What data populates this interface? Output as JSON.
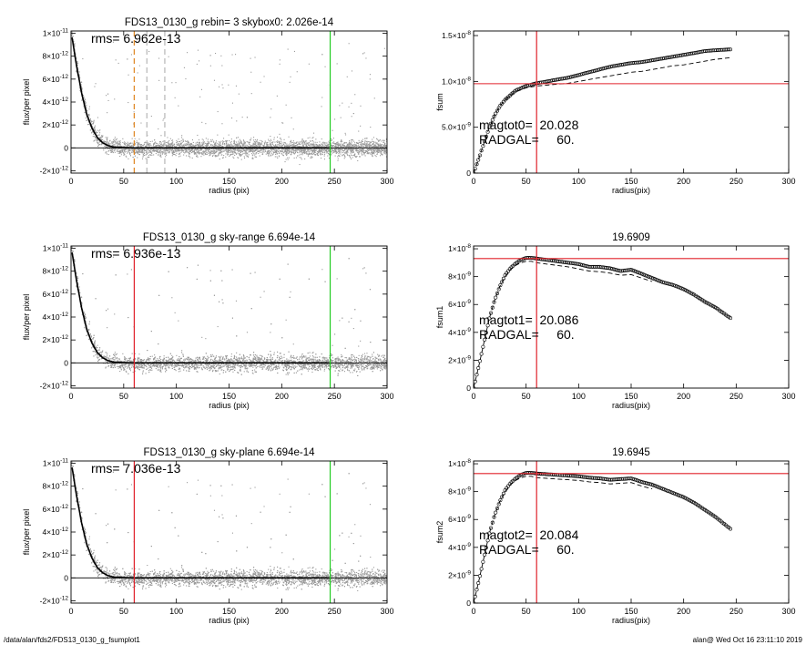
{
  "page": {
    "footer_left": "/data/alan/fds2/FDS13_0130_g_fsumplot1",
    "footer_right": "alan@  Wed Oct 16 23:11:10 2019"
  },
  "colors": {
    "background": "#ffffff",
    "axes": "#000000",
    "scatter": "#9a9a9a",
    "profile": "#000000",
    "red_line": "#e0222a",
    "green_line": "#22cc22",
    "orange_dashed": "#e08a2a",
    "gray_dashed": "#bbbbbb"
  },
  "chart_data": [
    {
      "id": "p1",
      "type": "scatter",
      "title": "FDS13_0130_g rebin= 3    skybox0:  2.026e-14",
      "xlabel": "radius (pix)",
      "ylabel": "flux/per pixel",
      "xlim": [
        0,
        300
      ],
      "ylim": [
        -2.2e-12,
        1.02e-11
      ],
      "xticks": [
        0,
        50,
        100,
        150,
        200,
        250,
        300
      ],
      "xtick_labels": [
        "0",
        "50",
        "100",
        "150",
        "200",
        "250",
        "300"
      ],
      "yticks": [
        -2e-12,
        0,
        2e-12,
        4e-12,
        6e-12,
        8e-12,
        1e-11
      ],
      "ytick_labels": [
        "-2×10^-12",
        "0",
        "2×10^-12",
        "4×10^-12",
        "6×10^-12",
        "8×10^-12",
        "1×10^-11"
      ],
      "annotation": "rms= 6.962e-13",
      "profile": {
        "x": [
          0,
          5,
          10,
          15,
          20,
          25,
          30,
          35,
          40,
          50,
          60,
          80,
          100,
          150,
          200,
          245
        ],
        "y": [
          1.02e-11,
          7.3e-12,
          4.8e-12,
          2.9e-12,
          1.7e-12,
          9e-13,
          4.5e-13,
          2e-13,
          8e-14,
          2e-14,
          0.0,
          0.0,
          0.0,
          0.0,
          0.0,
          0.0
        ]
      },
      "vlines": [
        {
          "x": 246,
          "color": "green",
          "style": "solid"
        },
        {
          "x": 60,
          "color": "orange",
          "style": "dashed"
        },
        {
          "x": 72,
          "color": "gray",
          "style": "dashed"
        },
        {
          "x": 89,
          "color": "gray",
          "style": "dashed"
        }
      ],
      "hlines": []
    },
    {
      "id": "p2",
      "type": "scatter",
      "title": "",
      "xlabel": "radius(pix)",
      "ylabel": "fsum",
      "xlim": [
        0,
        300
      ],
      "ylim": [
        0,
        1.55e-08
      ],
      "xticks": [
        0,
        50,
        100,
        150,
        200,
        250,
        300
      ],
      "xtick_labels": [
        "0",
        "50",
        "100",
        "150",
        "200",
        "250",
        "300"
      ],
      "yticks": [
        0,
        5e-09,
        1e-08,
        1.5e-08
      ],
      "ytick_labels": [
        "0",
        "5.0×10^-9",
        "1.0×10^-8",
        "1.5×10^-8"
      ],
      "annotations": [
        "magtot0=  20.028",
        "RADGAL=     60."
      ],
      "series": [
        {
          "style": "circles",
          "x": [
            0,
            5,
            10,
            15,
            20,
            25,
            30,
            40,
            50,
            60,
            70,
            80,
            90,
            100,
            110,
            120,
            130,
            140,
            150,
            160,
            170,
            180,
            190,
            200,
            210,
            220,
            230,
            245
          ],
          "y": [
            0,
            1.6e-09,
            3.3e-09,
            5e-09,
            6.3e-09,
            7.3e-09,
            8e-09,
            9e-09,
            9.5e-09,
            9.8e-09,
            1e-08,
            1.02e-08,
            1.04e-08,
            1.07e-08,
            1.1e-08,
            1.13e-08,
            1.16e-08,
            1.18e-08,
            1.2e-08,
            1.21e-08,
            1.23e-08,
            1.25e-08,
            1.27e-08,
            1.29e-08,
            1.31e-08,
            1.33e-08,
            1.34e-08,
            1.35e-08
          ]
        },
        {
          "style": "dashed",
          "x": [
            0,
            5,
            10,
            15,
            20,
            25,
            30,
            40,
            50,
            60,
            70,
            80,
            90,
            100,
            110,
            120,
            130,
            140,
            150,
            160,
            170,
            180,
            190,
            200,
            210,
            220,
            230,
            245
          ],
          "y": [
            0,
            1.6e-09,
            3.3e-09,
            5e-09,
            6.3e-09,
            7.3e-09,
            8e-09,
            8.9e-09,
            9.3e-09,
            9.5e-09,
            9.6e-09,
            9.7e-09,
            9.8e-09,
            1e-08,
            1.02e-08,
            1.04e-08,
            1.06e-08,
            1.08e-08,
            1.1e-08,
            1.11e-08,
            1.13e-08,
            1.15e-08,
            1.17e-08,
            1.18e-08,
            1.2e-08,
            1.22e-08,
            1.24e-08,
            1.26e-08
          ]
        }
      ],
      "vlines": [
        {
          "x": 60,
          "color": "red",
          "style": "solid"
        }
      ],
      "hlines": [
        {
          "y": 9.75e-09,
          "color": "red"
        }
      ]
    },
    {
      "id": "p3",
      "type": "scatter",
      "title": "FDS13_0130_g sky-range  6.694e-14",
      "xlabel": "radius (pix)",
      "ylabel": "flux/per pixel",
      "xlim": [
        0,
        300
      ],
      "ylim": [
        -2.2e-12,
        1.02e-11
      ],
      "xticks": [
        0,
        50,
        100,
        150,
        200,
        250,
        300
      ],
      "xtick_labels": [
        "0",
        "50",
        "100",
        "150",
        "200",
        "250",
        "300"
      ],
      "yticks": [
        -2e-12,
        0,
        2e-12,
        4e-12,
        6e-12,
        8e-12,
        1e-11
      ],
      "ytick_labels": [
        "-2×10^-12",
        "0",
        "2×10^-12",
        "4×10^-12",
        "6×10^-12",
        "8×10^-12",
        "1×10^-11"
      ],
      "annotation": "rms= 6.936e-13",
      "profile": {
        "x": [
          0,
          5,
          10,
          15,
          20,
          25,
          30,
          35,
          40,
          50,
          60,
          80,
          100,
          150,
          200,
          245
        ],
        "y": [
          1.02e-11,
          7.3e-12,
          4.8e-12,
          2.9e-12,
          1.7e-12,
          9e-13,
          4.5e-13,
          2e-13,
          8e-14,
          2e-14,
          0.0,
          0.0,
          0.0,
          0.0,
          0.0,
          0.0
        ]
      },
      "vlines": [
        {
          "x": 246,
          "color": "green",
          "style": "solid"
        },
        {
          "x": 60,
          "color": "red",
          "style": "solid"
        }
      ],
      "hlines": []
    },
    {
      "id": "p4",
      "type": "scatter",
      "title": "19.6909",
      "xlabel": "radius(pix)",
      "ylabel": "fsum1",
      "xlim": [
        0,
        300
      ],
      "ylim": [
        0,
        1.02e-08
      ],
      "xticks": [
        0,
        50,
        100,
        150,
        200,
        250,
        300
      ],
      "xtick_labels": [
        "0",
        "50",
        "100",
        "150",
        "200",
        "250",
        "300"
      ],
      "yticks": [
        0,
        2e-09,
        4e-09,
        6e-09,
        8e-09,
        1e-08
      ],
      "ytick_labels": [
        "0",
        "2×10^-9",
        "4×10^-9",
        "6×10^-9",
        "8×10^-9",
        "1×10^-8"
      ],
      "annotations": [
        "magtot1=  20.086",
        "RADGAL=     60."
      ],
      "series": [
        {
          "style": "circles",
          "x": [
            0,
            5,
            10,
            15,
            20,
            25,
            30,
            35,
            40,
            45,
            50,
            55,
            60,
            70,
            80,
            90,
            100,
            110,
            120,
            130,
            140,
            150,
            160,
            170,
            180,
            190,
            200,
            210,
            220,
            230,
            245
          ],
          "y": [
            0,
            1.6e-09,
            3.3e-09,
            5e-09,
            6.3e-09,
            7.3e-09,
            8.1e-09,
            8.6e-09,
            8.95e-09,
            9.2e-09,
            9.35e-09,
            9.35e-09,
            9.3e-09,
            9.2e-09,
            9.1e-09,
            9e-09,
            8.9e-09,
            8.7e-09,
            8.7e-09,
            8.6e-09,
            8.4e-09,
            8.5e-09,
            8.2e-09,
            7.9e-09,
            7.6e-09,
            7.4e-09,
            7.1e-09,
            6.7e-09,
            6.2e-09,
            5.8e-09,
            5e-09
          ]
        },
        {
          "style": "dashed",
          "x": [
            0,
            5,
            10,
            15,
            20,
            25,
            30,
            35,
            40,
            45,
            50,
            55,
            60,
            70,
            80,
            90,
            100,
            110,
            120,
            130,
            140,
            150,
            160,
            170
          ],
          "y": [
            0,
            1.6e-09,
            3.3e-09,
            5e-09,
            6.3e-09,
            7.3e-09,
            8e-09,
            8.5e-09,
            8.8e-09,
            9e-09,
            9.1e-09,
            9.1e-09,
            9e-09,
            8.9e-09,
            8.8e-09,
            8.7e-09,
            8.55e-09,
            8.4e-09,
            8.35e-09,
            8.25e-09,
            8.1e-09,
            8.15e-09,
            7.9e-09,
            7.65e-09
          ]
        }
      ],
      "vlines": [
        {
          "x": 60,
          "color": "red",
          "style": "solid"
        }
      ],
      "hlines": [
        {
          "y": 9.3e-09,
          "color": "red"
        }
      ]
    },
    {
      "id": "p5",
      "type": "scatter",
      "title": "FDS13_0130_g sky-plane  6.694e-14",
      "xlabel": "radius (pix)",
      "ylabel": "flux/per pixel",
      "xlim": [
        0,
        300
      ],
      "ylim": [
        -2.2e-12,
        1.02e-11
      ],
      "xticks": [
        0,
        50,
        100,
        150,
        200,
        250,
        300
      ],
      "xtick_labels": [
        "0",
        "50",
        "100",
        "150",
        "200",
        "250",
        "300"
      ],
      "yticks": [
        -2e-12,
        0,
        2e-12,
        4e-12,
        6e-12,
        8e-12,
        1e-11
      ],
      "ytick_labels": [
        "-2×10^-12",
        "0",
        "2×10^-12",
        "4×10^-12",
        "6×10^-12",
        "8×10^-12",
        "1×10^-11"
      ],
      "annotation": "rms= 7.036e-13",
      "profile": {
        "x": [
          0,
          5,
          10,
          15,
          20,
          25,
          30,
          35,
          40,
          50,
          60,
          80,
          100,
          150,
          200,
          245
        ],
        "y": [
          1.02e-11,
          7.3e-12,
          4.8e-12,
          2.9e-12,
          1.7e-12,
          9e-13,
          4.5e-13,
          2e-13,
          8e-14,
          2e-14,
          0.0,
          0.0,
          0.0,
          0.0,
          0.0,
          0.0
        ]
      },
      "vlines": [
        {
          "x": 246,
          "color": "green",
          "style": "solid"
        },
        {
          "x": 60,
          "color": "red",
          "style": "solid"
        }
      ],
      "hlines": []
    },
    {
      "id": "p6",
      "type": "scatter",
      "title": "19.6945",
      "xlabel": "radius(pix)",
      "ylabel": "fsum2",
      "xlim": [
        0,
        300
      ],
      "ylim": [
        0,
        1.02e-08
      ],
      "xticks": [
        0,
        50,
        100,
        150,
        200,
        250,
        300
      ],
      "xtick_labels": [
        "0",
        "50",
        "100",
        "150",
        "200",
        "250",
        "300"
      ],
      "yticks": [
        0,
        2e-09,
        4e-09,
        6e-09,
        8e-09,
        1e-08
      ],
      "ytick_labels": [
        "0",
        "2×10^-9",
        "4×10^-9",
        "6×10^-9",
        "8×10^-9",
        "1×10^-8"
      ],
      "annotations": [
        "magtot2=  20.084",
        "RADGAL=     60."
      ],
      "series": [
        {
          "style": "circles",
          "x": [
            0,
            5,
            10,
            15,
            20,
            25,
            30,
            35,
            40,
            45,
            50,
            55,
            60,
            70,
            80,
            90,
            100,
            110,
            120,
            130,
            140,
            150,
            160,
            170,
            180,
            190,
            200,
            210,
            220,
            230,
            245
          ],
          "y": [
            0,
            1.6e-09,
            3.3e-09,
            5e-09,
            6.3e-09,
            7.3e-09,
            8.1e-09,
            8.6e-09,
            8.95e-09,
            9.2e-09,
            9.35e-09,
            9.35e-09,
            9.3e-09,
            9.25e-09,
            9.2e-09,
            9.15e-09,
            9.1e-09,
            9e-09,
            8.95e-09,
            8.85e-09,
            8.9e-09,
            8.95e-09,
            8.7e-09,
            8.5e-09,
            8.2e-09,
            7.9e-09,
            7.6e-09,
            7.2e-09,
            6.7e-09,
            6.2e-09,
            5.3e-09
          ]
        },
        {
          "style": "dashed",
          "x": [
            0,
            5,
            10,
            15,
            20,
            25,
            30,
            35,
            40,
            45,
            50,
            55,
            60,
            70,
            80,
            90,
            100,
            110,
            120,
            130,
            140,
            150,
            160,
            170
          ],
          "y": [
            0,
            1.6e-09,
            3.3e-09,
            5e-09,
            6.3e-09,
            7.3e-09,
            8e-09,
            8.5e-09,
            8.8e-09,
            9e-09,
            9.1e-09,
            9.1e-09,
            9e-09,
            8.95e-09,
            8.9e-09,
            8.85e-09,
            8.8e-09,
            8.7e-09,
            8.65e-09,
            8.55e-09,
            8.6e-09,
            8.65e-09,
            8.4e-09,
            8.2e-09
          ]
        }
      ],
      "vlines": [
        {
          "x": 60,
          "color": "red",
          "style": "solid"
        }
      ],
      "hlines": [
        {
          "y": 9.3e-09,
          "color": "red"
        }
      ]
    }
  ]
}
